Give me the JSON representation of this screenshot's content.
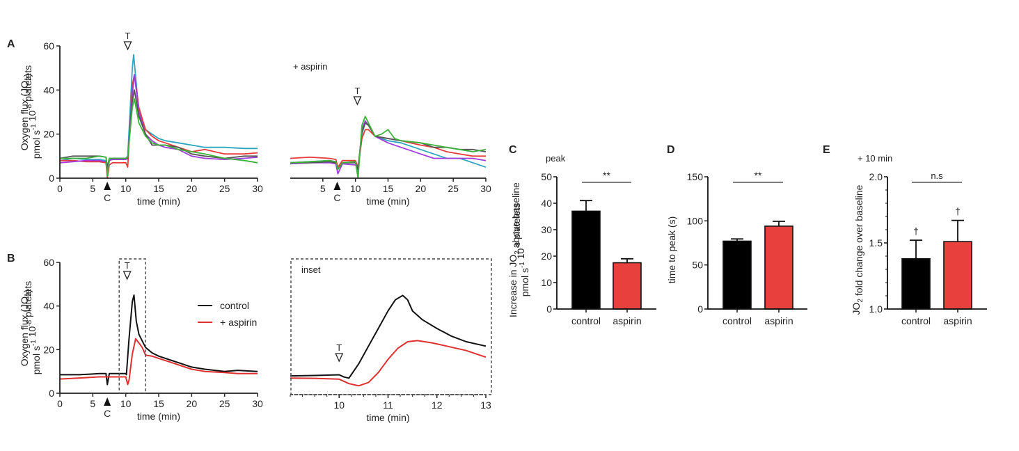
{
  "figure": {
    "panels": [
      "A",
      "B",
      "C",
      "D",
      "E"
    ]
  },
  "chart_data": [
    {
      "id": "A-control",
      "panel": "A",
      "type": "line",
      "title": "",
      "xlabel": "time (min)",
      "ylabel_line1": "Oxygen flux (JO2)",
      "ylabel_line2": "pmol s-1 10-8 platelets",
      "xlim": [
        0,
        30
      ],
      "ylim": [
        0,
        60
      ],
      "xticks": [
        0,
        5,
        10,
        15,
        20,
        25,
        30
      ],
      "yticks": [
        0,
        20,
        40,
        60
      ],
      "markers": {
        "T_label": "T",
        "T_time": 10.3,
        "C_label": "C",
        "C_time": 7.2
      },
      "series": [
        {
          "name": "trace 1",
          "color": "#2aa6c0",
          "x": [
            0,
            2,
            4,
            6,
            7,
            7.2,
            7.5,
            8,
            10,
            10.3,
            11,
            11.2,
            12,
            13,
            14,
            15,
            16,
            18,
            20,
            22,
            25,
            28,
            30
          ],
          "y": [
            8,
            9,
            8.5,
            8.5,
            8,
            3,
            8,
            9,
            9,
            10,
            50,
            56,
            30,
            22,
            20,
            18,
            17,
            16,
            15,
            14,
            14,
            13.5,
            13.5
          ]
        },
        {
          "name": "trace 2",
          "color": "#e83a3a",
          "x": [
            0,
            2,
            4,
            6,
            7,
            7.2,
            7.5,
            8,
            10,
            10.3,
            11,
            11.3,
            12,
            13,
            14,
            15,
            16,
            18,
            20,
            22,
            25,
            28,
            30
          ],
          "y": [
            8,
            8,
            7.5,
            7.5,
            7,
            0,
            6,
            7,
            7,
            5,
            42,
            47,
            32,
            22,
            19,
            17,
            16,
            14,
            12,
            13,
            11,
            11,
            11.5
          ]
        },
        {
          "name": "trace 3",
          "color": "#a03cdc",
          "x": [
            0,
            2,
            4,
            6,
            7,
            7.2,
            7.5,
            8,
            10,
            10.3,
            11,
            11.3,
            12,
            13,
            14,
            15,
            16,
            18,
            20,
            22,
            25,
            28,
            30
          ],
          "y": [
            7,
            7.5,
            8,
            8,
            7.5,
            3,
            8,
            8.5,
            8.5,
            9,
            38,
            47,
            30,
            20,
            17,
            15,
            14,
            13,
            10,
            9,
            8.5,
            9,
            9.5
          ]
        },
        {
          "name": "trace 4",
          "color": "#555555",
          "x": [
            0,
            2,
            4,
            6,
            7,
            7.2,
            7.5,
            8,
            10,
            10.3,
            11,
            11.3,
            12,
            13,
            14,
            15,
            16,
            18,
            20,
            22,
            25,
            28,
            30
          ],
          "y": [
            9,
            10,
            10,
            10,
            9.5,
            5,
            9,
            9,
            9,
            9,
            35,
            40,
            28,
            20,
            15,
            15,
            15,
            14,
            11,
            10,
            9,
            10,
            10
          ]
        },
        {
          "name": "trace 5",
          "color": "#3cb43c",
          "x": [
            0,
            2,
            4,
            6,
            7,
            7.2,
            7.5,
            8,
            10,
            10.3,
            11,
            11.3,
            12,
            13,
            14,
            15,
            16,
            18,
            20,
            22,
            25,
            28,
            30
          ],
          "y": [
            9,
            9,
            9,
            10,
            9.5,
            1,
            9,
            9,
            9,
            9.5,
            32,
            36,
            25,
            19,
            16,
            15,
            15,
            13,
            12,
            11,
            9,
            8,
            7
          ]
        }
      ]
    },
    {
      "id": "A-aspirin",
      "panel": "A",
      "type": "line",
      "title": "+ aspirin",
      "xlabel": "time (min)",
      "xlim": [
        0,
        30
      ],
      "ylim": [
        0,
        60
      ],
      "xticks": [
        5,
        10,
        15,
        20,
        25,
        30
      ],
      "markers": {
        "T_label": "T",
        "T_time": 9.3,
        "C_label": "C",
        "C_time": 7.2
      },
      "series": [
        {
          "name": "trace 1",
          "color": "#2aa6c0",
          "x": [
            0,
            3,
            6,
            7,
            7.3,
            8,
            10,
            10.4,
            11,
            11.5,
            12,
            13,
            15,
            17,
            20,
            22,
            24,
            26,
            28,
            30
          ],
          "y": [
            7,
            7.5,
            8,
            7.5,
            4,
            7,
            7,
            3,
            20,
            25,
            24,
            19,
            17,
            16,
            13,
            11,
            9,
            9,
            7,
            5
          ]
        },
        {
          "name": "trace 2",
          "color": "#e83a3a",
          "x": [
            0,
            3,
            6,
            7,
            7.3,
            8,
            10,
            10.4,
            11,
            11.5,
            12,
            13,
            15,
            17,
            20,
            22,
            24,
            26,
            28,
            30
          ],
          "y": [
            9,
            9.5,
            9,
            8.5,
            5,
            8,
            8,
            5,
            18,
            22,
            22,
            19,
            18,
            17,
            15,
            14,
            12,
            11,
            10,
            10
          ]
        },
        {
          "name": "trace 3",
          "color": "#a03cdc",
          "x": [
            0,
            3,
            6,
            7,
            7.3,
            8,
            10,
            10.4,
            11,
            11.5,
            12,
            13,
            15,
            17,
            20,
            22,
            24,
            26,
            28,
            30
          ],
          "y": [
            6.5,
            7,
            7,
            6.5,
            2,
            6.5,
            6,
            4,
            22,
            26,
            24,
            19,
            16,
            14,
            11,
            9,
            9,
            9,
            9,
            8
          ]
        },
        {
          "name": "trace 4",
          "color": "#555555",
          "x": [
            0,
            3,
            6,
            7,
            7.3,
            8,
            10,
            10.4,
            11,
            11.5,
            12,
            13,
            15,
            17,
            20,
            22,
            24,
            26,
            28,
            30
          ],
          "y": [
            7,
            7,
            7.5,
            7,
            4,
            7,
            7,
            4,
            21,
            25,
            24,
            19,
            18,
            17,
            16,
            14,
            14,
            13,
            13,
            12
          ]
        },
        {
          "name": "trace 5",
          "color": "#3cb43c",
          "x": [
            0,
            3,
            6,
            7,
            7.3,
            8,
            10,
            10.4,
            11,
            11.5,
            12,
            13,
            14,
            15,
            16,
            17,
            20,
            22,
            24,
            26,
            28,
            30
          ],
          "y": [
            7,
            7.5,
            8,
            7.5,
            4,
            7,
            7.5,
            0,
            24,
            28,
            25,
            19,
            20,
            22,
            18,
            17,
            16,
            15,
            14,
            13,
            12,
            13
          ]
        }
      ]
    },
    {
      "id": "B-average",
      "panel": "B",
      "type": "line",
      "xlabel": "time (min)",
      "ylabel_line1": "Oxygen flux (JO2)",
      "ylabel_line2": "pmol s-1 10-8 platelets",
      "xlim": [
        0,
        30
      ],
      "ylim": [
        0,
        60
      ],
      "xticks": [
        0,
        5,
        10,
        15,
        20,
        25,
        30
      ],
      "yticks": [
        0,
        20,
        40,
        60
      ],
      "markers": {
        "T_label": "T",
        "T_time": 10.0,
        "C_label": "C",
        "C_time": 7.2
      },
      "inset_box": {
        "x_from": 9,
        "x_to": 13
      },
      "legend": {
        "position": "right",
        "entries": [
          {
            "label": "control",
            "color": "#111111"
          },
          {
            "label": "+ aspirin",
            "color": "#e03030"
          }
        ]
      },
      "series": [
        {
          "name": "control",
          "color": "#111111",
          "x": [
            0,
            3,
            6,
            7,
            7.2,
            7.5,
            8,
            10,
            10.1,
            10.5,
            11,
            11.25,
            11.6,
            12,
            12.5,
            13,
            14,
            15,
            17,
            20,
            22,
            25,
            27,
            30
          ],
          "y": [
            8.5,
            8.5,
            9,
            9,
            4,
            9,
            9,
            9,
            8.5,
            25,
            42,
            45,
            33,
            27,
            24,
            21,
            18.5,
            17,
            15,
            12,
            11,
            10,
            10.5,
            10
          ]
        },
        {
          "name": "+ aspirin",
          "color": "#e03030",
          "x": [
            0,
            3,
            6,
            7,
            8,
            10,
            10.3,
            10.5,
            11,
            11.5,
            12,
            12.5,
            13,
            14,
            15,
            17,
            20,
            22,
            25,
            27,
            30
          ],
          "y": [
            6.5,
            7,
            7.5,
            7.5,
            7.5,
            7.5,
            4,
            6,
            18,
            25,
            23,
            21,
            17.5,
            17,
            16,
            14,
            11,
            10,
            9.5,
            9,
            9
          ]
        }
      ]
    },
    {
      "id": "B-inset",
      "panel": "B",
      "type": "line",
      "title": "inset",
      "xlabel": "time (min)",
      "xlim": [
        9,
        13
      ],
      "xticks": [
        10,
        11,
        12,
        13
      ],
      "markers": {
        "T_label": "T",
        "T_time": 10.0
      },
      "series": [
        {
          "name": "control",
          "color": "#111111",
          "x": [
            9,
            9.5,
            10,
            10.1,
            10.2,
            10.4,
            10.6,
            10.8,
            11,
            11.15,
            11.3,
            11.4,
            11.5,
            11.7,
            12,
            12.3,
            12.6,
            13
          ],
          "y": [
            8.5,
            8.7,
            9,
            8,
            7.5,
            14,
            22,
            30,
            38,
            43,
            45,
            43,
            38,
            34,
            30,
            26.5,
            24,
            22
          ]
        },
        {
          "name": "+ aspirin",
          "color": "#e03030",
          "x": [
            9,
            9.5,
            10,
            10.2,
            10.4,
            10.6,
            10.8,
            11,
            11.2,
            11.4,
            11.6,
            11.9,
            12.2,
            12.6,
            13
          ],
          "y": [
            7.5,
            7.4,
            7,
            5,
            4,
            5.5,
            10,
            16,
            21,
            24,
            24.5,
            23.5,
            22,
            20,
            17
          ]
        }
      ]
    },
    {
      "id": "C",
      "panel": "C",
      "type": "bar",
      "title": "peak",
      "ylabel_line1": "Increase in JO2 above baseline",
      "ylabel_line2": "pmol s-1 10-8 platelets",
      "categories": [
        "control",
        "aspirin"
      ],
      "values": [
        37,
        17.5
      ],
      "errors": [
        4,
        1.5
      ],
      "colors": [
        "#000000",
        "#e8403c"
      ],
      "ylim": [
        0,
        50
      ],
      "yticks": [
        0,
        10,
        20,
        30,
        40,
        50
      ],
      "significance": "**"
    },
    {
      "id": "D",
      "panel": "D",
      "type": "bar",
      "title": "",
      "ylabel_line1": "time to peak (s)",
      "categories": [
        "control",
        "aspirin"
      ],
      "values": [
        77,
        94
      ],
      "errors": [
        2.5,
        5.5
      ],
      "colors": [
        "#000000",
        "#e8403c"
      ],
      "ylim": [
        0,
        150
      ],
      "yticks": [
        0,
        50,
        100,
        150
      ],
      "significance": "**"
    },
    {
      "id": "E",
      "panel": "E",
      "type": "bar",
      "title": "+ 10 min",
      "ylabel_line1": "JO2 fold change over baseline",
      "categories": [
        "control",
        "aspirin"
      ],
      "values": [
        1.38,
        1.51
      ],
      "errors": [
        0.14,
        0.16
      ],
      "colors": [
        "#000000",
        "#e8403c"
      ],
      "ylim": [
        1.0,
        2.0
      ],
      "yticks": [
        1.0,
        1.5,
        2.0
      ],
      "significance": "n.s",
      "bar_annotations": [
        "†",
        "†"
      ]
    }
  ]
}
